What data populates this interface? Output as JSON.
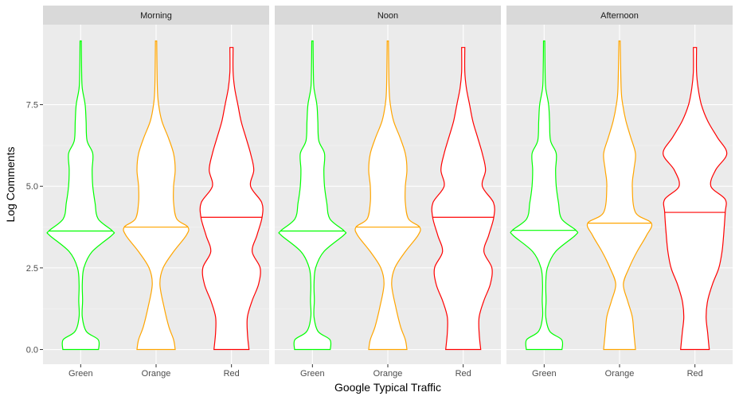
{
  "chart_data": {
    "type": "violin",
    "xlabel": "Google Typical Traffic",
    "ylabel": "Log Comments",
    "ylim": [
      -0.45,
      9.95
    ],
    "yticks": [
      0.0,
      2.5,
      5.0,
      7.5
    ],
    "ytick_labels": [
      "0.0",
      "2.5",
      "5.0",
      "7.5"
    ],
    "categories": [
      "Green",
      "Orange",
      "Red"
    ],
    "colors": {
      "Green": "#00ff00",
      "Orange": "#ffa500",
      "Red": "#ff0000"
    },
    "panel_background": "#ebebeb",
    "strip_background": "#d9d9d9",
    "grid": true,
    "legend": "none",
    "facets": [
      {
        "name": "Morning",
        "violins": [
          {
            "category": "Green",
            "median": 3.63,
            "ymin": 0.0,
            "ymax": 9.45,
            "density": [
              [
                0,
                0.56
              ],
              [
                0.3,
                0.55
              ],
              [
                0.55,
                0.18
              ],
              [
                1.0,
                0.05
              ],
              [
                1.5,
                0.06
              ],
              [
                2.0,
                0.05
              ],
              [
                2.5,
                0.1
              ],
              [
                3.0,
                0.36
              ],
              [
                3.5,
                0.98
              ],
              [
                3.63,
                1.0
              ],
              [
                4.0,
                0.55
              ],
              [
                4.5,
                0.45
              ],
              [
                5.0,
                0.38
              ],
              [
                5.5,
                0.36
              ],
              [
                6.0,
                0.38
              ],
              [
                6.4,
                0.2
              ],
              [
                7.0,
                0.17
              ],
              [
                7.5,
                0.14
              ],
              [
                8.0,
                0.05
              ],
              [
                8.5,
                0.03
              ],
              [
                9.45,
                0.02
              ]
            ]
          },
          {
            "category": "Orange",
            "median": 3.75,
            "ymin": 0.0,
            "ymax": 9.45,
            "density": [
              [
                0,
                0.6
              ],
              [
                0.3,
                0.55
              ],
              [
                0.7,
                0.4
              ],
              [
                1.3,
                0.25
              ],
              [
                2.0,
                0.12
              ],
              [
                2.5,
                0.22
              ],
              [
                3.0,
                0.55
              ],
              [
                3.5,
                0.95
              ],
              [
                3.75,
                1.0
              ],
              [
                4.0,
                0.65
              ],
              [
                4.5,
                0.55
              ],
              [
                5.0,
                0.55
              ],
              [
                5.5,
                0.6
              ],
              [
                6.0,
                0.55
              ],
              [
                6.5,
                0.38
              ],
              [
                7.0,
                0.18
              ],
              [
                7.5,
                0.08
              ],
              [
                8.0,
                0.04
              ],
              [
                9.45,
                0.02
              ]
            ]
          },
          {
            "category": "Red",
            "median": 4.05,
            "ymin": 0.0,
            "ymax": 9.25,
            "density": [
              [
                0,
                0.55
              ],
              [
                0.5,
                0.5
              ],
              [
                1.0,
                0.5
              ],
              [
                1.5,
                0.65
              ],
              [
                2.0,
                0.85
              ],
              [
                2.5,
                0.9
              ],
              [
                3.0,
                0.65
              ],
              [
                3.5,
                0.8
              ],
              [
                4.05,
                0.96
              ],
              [
                4.5,
                0.95
              ],
              [
                5.0,
                0.6
              ],
              [
                5.5,
                0.7
              ],
              [
                6.0,
                0.6
              ],
              [
                6.5,
                0.45
              ],
              [
                7.0,
                0.3
              ],
              [
                7.5,
                0.2
              ],
              [
                8.0,
                0.1
              ],
              [
                8.5,
                0.05
              ],
              [
                9.25,
                0.05
              ]
            ]
          }
        ]
      },
      {
        "name": "Noon",
        "violins": [
          {
            "category": "Green",
            "median": 3.63,
            "ymin": 0.0,
            "ymax": 9.45,
            "density": [
              [
                0,
                0.56
              ],
              [
                0.3,
                0.55
              ],
              [
                0.55,
                0.18
              ],
              [
                1.0,
                0.05
              ],
              [
                1.5,
                0.06
              ],
              [
                2.0,
                0.05
              ],
              [
                2.5,
                0.1
              ],
              [
                3.0,
                0.36
              ],
              [
                3.5,
                0.98
              ],
              [
                3.63,
                1.0
              ],
              [
                4.0,
                0.55
              ],
              [
                4.5,
                0.45
              ],
              [
                5.0,
                0.38
              ],
              [
                5.5,
                0.36
              ],
              [
                6.0,
                0.38
              ],
              [
                6.4,
                0.2
              ],
              [
                7.0,
                0.17
              ],
              [
                7.5,
                0.14
              ],
              [
                8.0,
                0.05
              ],
              [
                8.5,
                0.03
              ],
              [
                9.45,
                0.02
              ]
            ]
          },
          {
            "category": "Orange",
            "median": 3.75,
            "ymin": 0.0,
            "ymax": 9.45,
            "density": [
              [
                0,
                0.6
              ],
              [
                0.3,
                0.55
              ],
              [
                0.7,
                0.4
              ],
              [
                1.3,
                0.25
              ],
              [
                2.0,
                0.12
              ],
              [
                2.5,
                0.22
              ],
              [
                3.0,
                0.55
              ],
              [
                3.5,
                0.95
              ],
              [
                3.75,
                1.0
              ],
              [
                4.0,
                0.65
              ],
              [
                4.5,
                0.55
              ],
              [
                5.0,
                0.55
              ],
              [
                5.5,
                0.6
              ],
              [
                6.0,
                0.55
              ],
              [
                6.5,
                0.38
              ],
              [
                7.0,
                0.18
              ],
              [
                7.5,
                0.08
              ],
              [
                8.0,
                0.04
              ],
              [
                9.45,
                0.02
              ]
            ]
          },
          {
            "category": "Red",
            "median": 4.05,
            "ymin": 0.0,
            "ymax": 9.25,
            "density": [
              [
                0,
                0.55
              ],
              [
                0.5,
                0.5
              ],
              [
                1.0,
                0.5
              ],
              [
                1.5,
                0.65
              ],
              [
                2.0,
                0.85
              ],
              [
                2.5,
                0.9
              ],
              [
                3.0,
                0.65
              ],
              [
                3.5,
                0.8
              ],
              [
                4.05,
                0.96
              ],
              [
                4.5,
                0.95
              ],
              [
                5.0,
                0.6
              ],
              [
                5.5,
                0.7
              ],
              [
                6.0,
                0.6
              ],
              [
                6.5,
                0.45
              ],
              [
                7.0,
                0.3
              ],
              [
                7.5,
                0.2
              ],
              [
                8.0,
                0.1
              ],
              [
                8.5,
                0.05
              ],
              [
                9.25,
                0.05
              ]
            ]
          }
        ]
      },
      {
        "name": "Afternoon",
        "violins": [
          {
            "category": "Green",
            "median": 3.65,
            "ymin": 0.0,
            "ymax": 9.45,
            "density": [
              [
                0,
                0.56
              ],
              [
                0.3,
                0.55
              ],
              [
                0.55,
                0.18
              ],
              [
                1.0,
                0.05
              ],
              [
                1.5,
                0.06
              ],
              [
                2.0,
                0.05
              ],
              [
                2.5,
                0.1
              ],
              [
                3.0,
                0.36
              ],
              [
                3.5,
                0.98
              ],
              [
                3.65,
                1.0
              ],
              [
                4.0,
                0.55
              ],
              [
                4.5,
                0.45
              ],
              [
                5.0,
                0.38
              ],
              [
                5.5,
                0.36
              ],
              [
                6.0,
                0.38
              ],
              [
                6.4,
                0.2
              ],
              [
                7.0,
                0.17
              ],
              [
                7.5,
                0.14
              ],
              [
                8.0,
                0.05
              ],
              [
                8.5,
                0.03
              ],
              [
                9.45,
                0.02
              ]
            ]
          },
          {
            "category": "Orange",
            "median": 3.87,
            "ymin": 0.0,
            "ymax": 9.45,
            "density": [
              [
                0,
                0.5
              ],
              [
                0.5,
                0.45
              ],
              [
                1.0,
                0.4
              ],
              [
                1.5,
                0.25
              ],
              [
                2.0,
                0.12
              ],
              [
                2.5,
                0.3
              ],
              [
                3.0,
                0.55
              ],
              [
                3.5,
                0.85
              ],
              [
                3.87,
                1.0
              ],
              [
                4.2,
                0.5
              ],
              [
                5.0,
                0.4
              ],
              [
                5.5,
                0.45
              ],
              [
                6.0,
                0.5
              ],
              [
                6.5,
                0.35
              ],
              [
                7.0,
                0.2
              ],
              [
                7.5,
                0.1
              ],
              [
                8.0,
                0.05
              ],
              [
                9.45,
                0.02
              ]
            ]
          },
          {
            "category": "Red",
            "median": 4.2,
            "ymin": 0.0,
            "ymax": 9.25,
            "density": [
              [
                0,
                0.45
              ],
              [
                0.5,
                0.4
              ],
              [
                1.0,
                0.35
              ],
              [
                1.5,
                0.4
              ],
              [
                2.0,
                0.55
              ],
              [
                2.5,
                0.75
              ],
              [
                3.0,
                0.85
              ],
              [
                3.5,
                0.9
              ],
              [
                4.2,
                0.95
              ],
              [
                4.6,
                0.95
              ],
              [
                5.0,
                0.5
              ],
              [
                5.5,
                0.65
              ],
              [
                6.0,
                1.0
              ],
              [
                6.5,
                0.7
              ],
              [
                7.0,
                0.4
              ],
              [
                7.5,
                0.2
              ],
              [
                8.0,
                0.1
              ],
              [
                8.5,
                0.05
              ],
              [
                9.25,
                0.05
              ]
            ]
          }
        ]
      }
    ]
  }
}
